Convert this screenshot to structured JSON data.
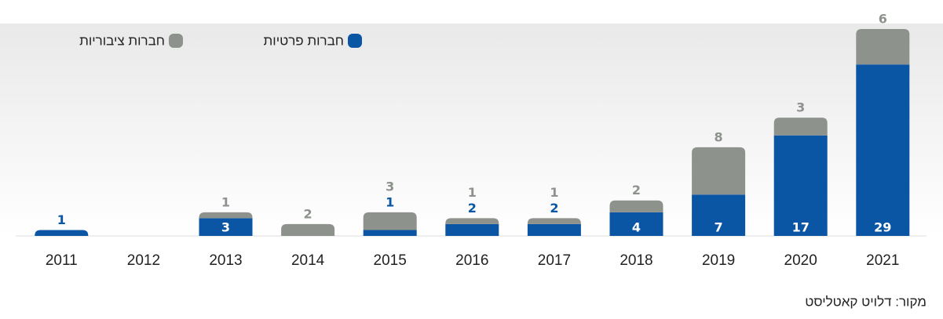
{
  "chart_data": {
    "type": "stacked_bar",
    "categories": [
      "2011",
      "2012",
      "2013",
      "2014",
      "2015",
      "2016",
      "2017",
      "2018",
      "2019",
      "2020",
      "2021"
    ],
    "series": [
      {
        "name": "חברות פרטיות",
        "color": "#0b56a4",
        "values": [
          1,
          null,
          3,
          null,
          1,
          2,
          2,
          4,
          7,
          17,
          29
        ]
      },
      {
        "name": "חברות ציבוריות",
        "color": "#8e928d",
        "values": [
          null,
          null,
          1,
          2,
          3,
          1,
          1,
          2,
          8,
          3,
          6
        ]
      }
    ],
    "source": "מקור: דלויט קאטליסט"
  }
}
